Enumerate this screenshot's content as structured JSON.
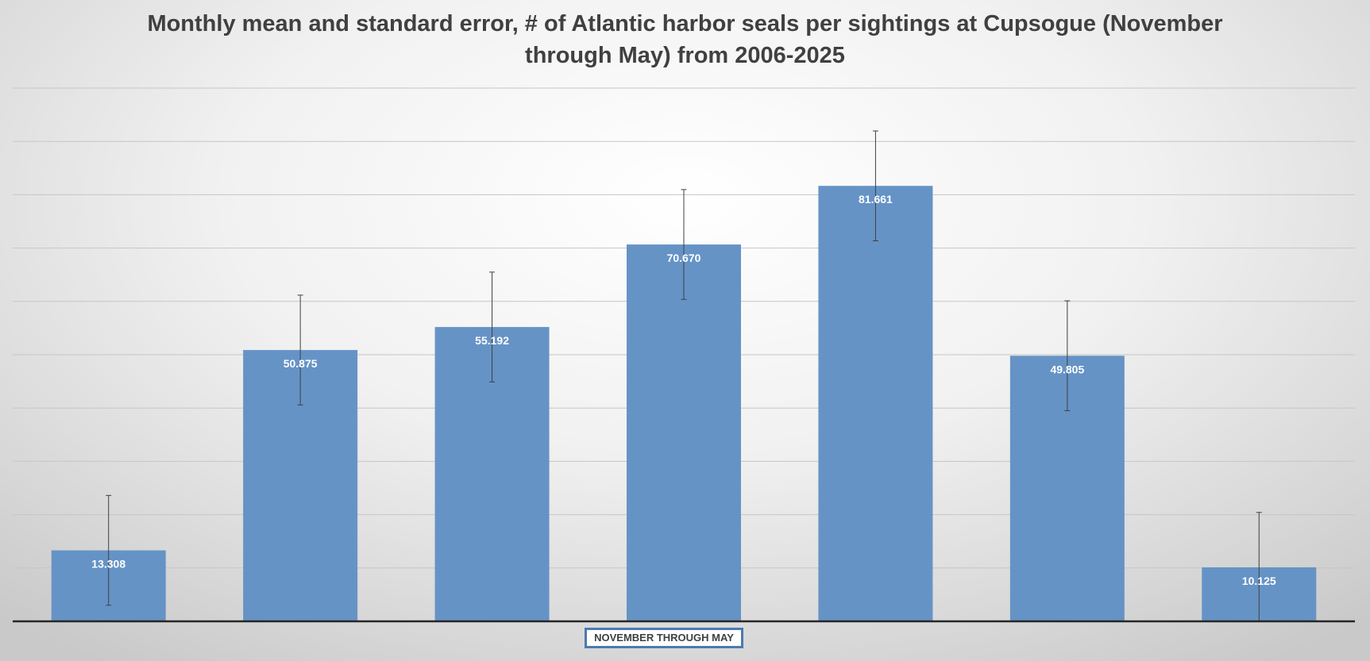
{
  "chart_data": {
    "type": "bar",
    "title": "Monthly mean and standard error, # of Atlantic harbor seals per sightings at Cupsogue  (November through May) from 2006-2025",
    "xlabel": "NOVEMBER THROUGH MAY",
    "ylabel": "",
    "categories": [
      "",
      "",
      "",
      "",
      "",
      "",
      ""
    ],
    "values": [
      13.308,
      50.875,
      55.192,
      70.67,
      81.661,
      49.805,
      10.125
    ],
    "value_labels": [
      "13.308",
      "50.875",
      "55.192",
      "70.670",
      "81.661",
      "49.805",
      "10.125"
    ],
    "error": [
      10.3,
      10.3,
      10.3,
      10.3,
      10.3,
      10.3,
      10.3
    ],
    "ylim": [
      0,
      100
    ],
    "y_gridline_step": 10,
    "grid": true,
    "legend": false,
    "colors": {
      "bar": "#6693c6",
      "gridline": "#c6c6c6",
      "axis": "#262626",
      "error_bar": "#404040"
    }
  }
}
